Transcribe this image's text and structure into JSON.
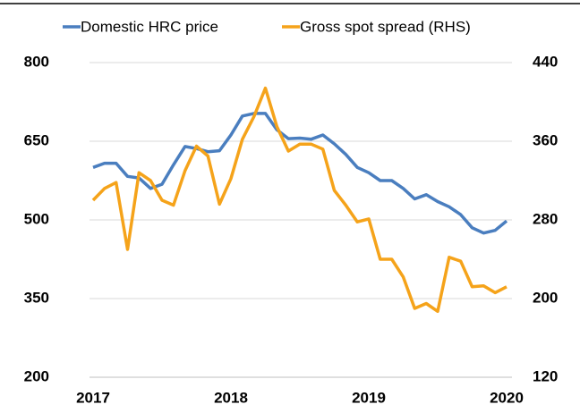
{
  "chart_data": {
    "type": "line",
    "categories": [
      "2017",
      null,
      null,
      null,
      null,
      null,
      null,
      null,
      null,
      null,
      null,
      null,
      "2018",
      null,
      null,
      null,
      null,
      null,
      null,
      null,
      null,
      null,
      null,
      null,
      "2019",
      null,
      null,
      null,
      null,
      null,
      null,
      null,
      null,
      null,
      null,
      null,
      "2020"
    ],
    "series": [
      {
        "name": "Domestic HRC price",
        "color": "#4a7ebf",
        "values": [
          600,
          608,
          608,
          583,
          580,
          560,
          568,
          605,
          640,
          636,
          630,
          632,
          662,
          698,
          703,
          703,
          672,
          655,
          656,
          654,
          662,
          645,
          625,
          600,
          590,
          575,
          575,
          560,
          540,
          548,
          535,
          525,
          510,
          485,
          475,
          480,
          498
        ]
      },
      {
        "name": "Gross spot spread (RHS)",
        "color": "#f5a31a",
        "axis": "y2",
        "values": [
          300,
          312,
          318,
          250,
          328,
          320,
          300,
          295,
          330,
          355,
          345,
          296,
          322,
          362,
          385,
          414,
          375,
          350,
          357,
          357,
          352,
          310,
          295,
          278,
          281,
          240,
          240,
          222,
          190,
          195,
          187,
          242,
          238,
          212,
          213,
          206,
          212
        ]
      }
    ],
    "ylim": [
      200,
      800
    ],
    "yticks": [
      200,
      350,
      500,
      650,
      800
    ],
    "y2lim": [
      120,
      440
    ],
    "y2ticks": [
      120,
      200,
      280,
      360,
      440
    ],
    "grid": true,
    "legend": "top"
  }
}
